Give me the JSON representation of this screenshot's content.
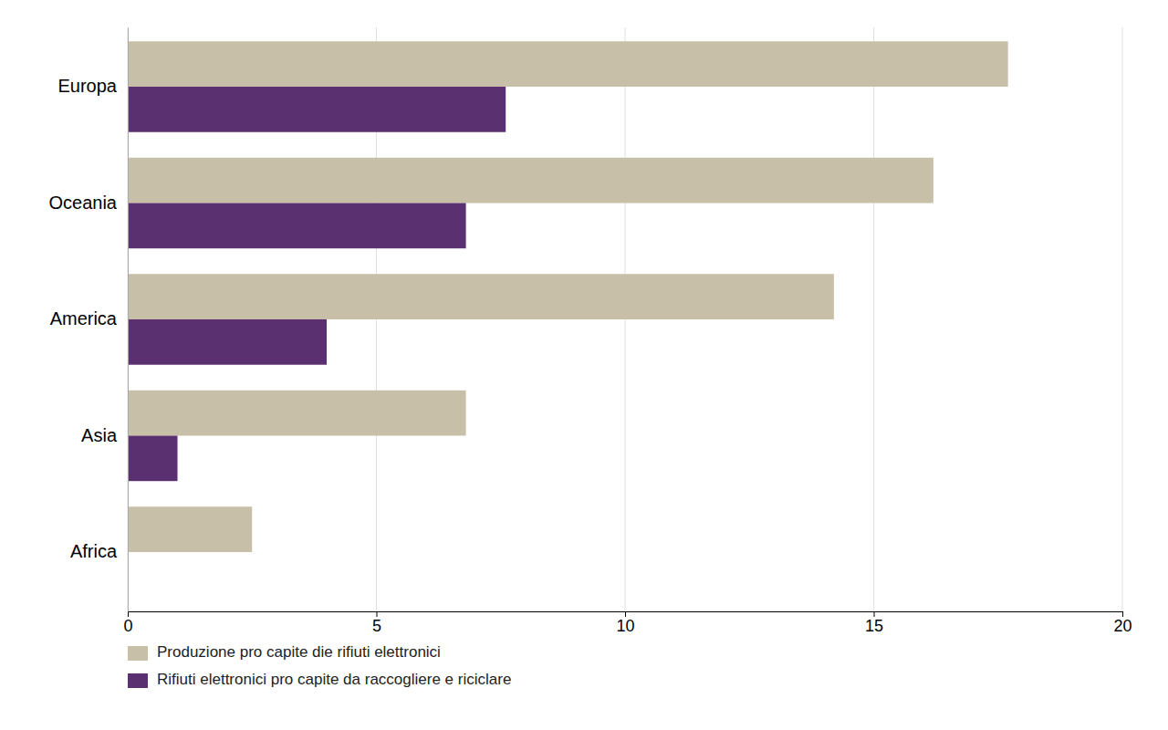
{
  "chart_data": {
    "type": "bar",
    "orientation": "horizontal",
    "categories": [
      "Europa",
      "Oceania",
      "America",
      "Asia",
      "Africa"
    ],
    "series": [
      {
        "name": "Produzione pro capite die rifiuti elettronici",
        "color": "#c8bfa8",
        "values": [
          17.7,
          16.2,
          14.2,
          6.8,
          2.5
        ]
      },
      {
        "name": "Rifiuti elettronici pro capite da raccogliere e riciclare",
        "color": "#5b3070",
        "values": [
          7.6,
          6.8,
          4.0,
          1.0,
          0
        ]
      }
    ],
    "xlim": [
      0,
      20
    ],
    "xticks": [
      0,
      5,
      10,
      15,
      20
    ],
    "grid": true,
    "legend": "lower left"
  }
}
